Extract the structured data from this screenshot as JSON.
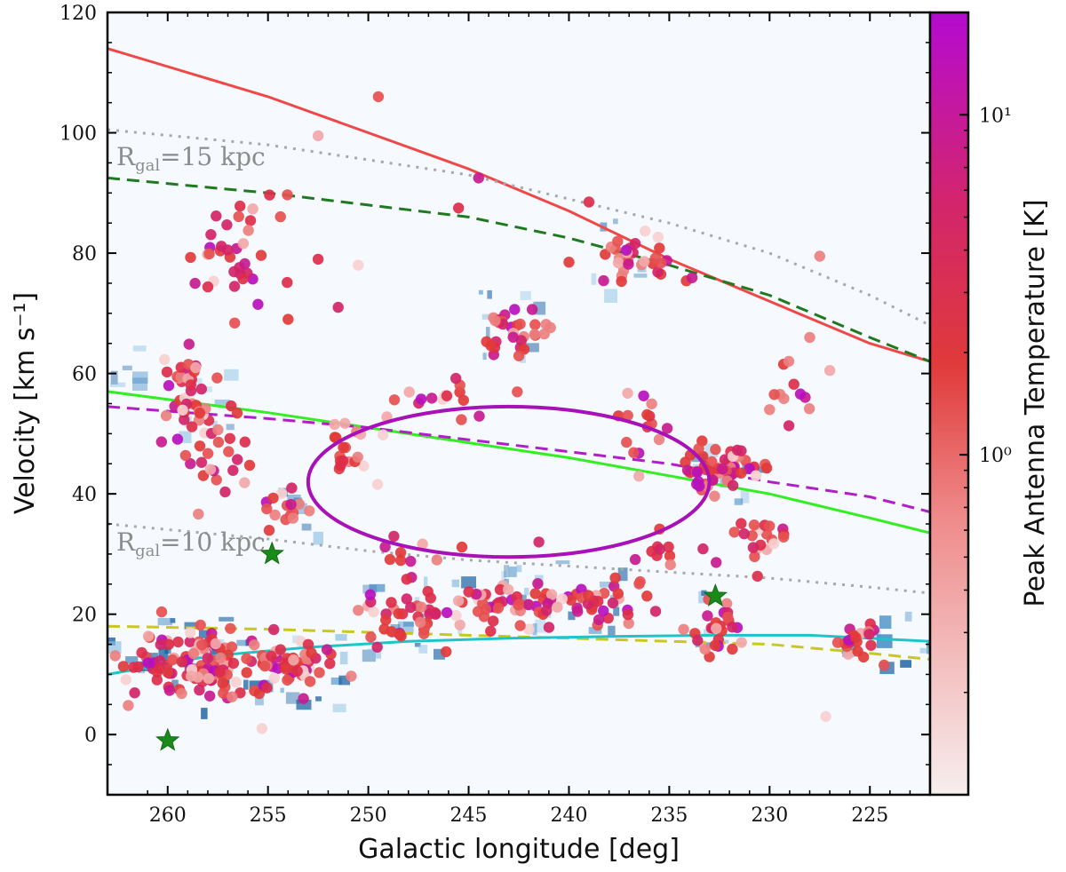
{
  "chart_data": {
    "type": "scatter",
    "title": "",
    "xlabel": "Galactic longitude [deg]",
    "ylabel": "Velocity [km s⁻¹]",
    "colorbar_label": "Peak Antenna Temperature [K]",
    "xlim": [
      263,
      222
    ],
    "ylim": [
      -10,
      120
    ],
    "x_ticks": [
      260,
      255,
      250,
      245,
      240,
      235,
      230,
      225
    ],
    "x_tick_labels": [
      "260",
      "255",
      "250",
      "245",
      "240",
      "235",
      "230",
      "225"
    ],
    "y_ticks": [
      0,
      20,
      40,
      60,
      80,
      100,
      120
    ],
    "y_tick_labels": [
      "0",
      "20",
      "40",
      "60",
      "80",
      "100",
      "120"
    ],
    "colorbar": {
      "scale": "log",
      "range": [
        0.1,
        20
      ],
      "ticks": [
        1,
        10
      ],
      "tick_labels": [
        "10⁰",
        "10¹"
      ]
    },
    "annotations": [
      {
        "text": "R_gal=15 kpc",
        "base": "R",
        "sub": "gal",
        "rest": "=15 kpc",
        "x": 262.2,
        "y": 96
      },
      {
        "text": "R_gal=10 kpc",
        "base": "R",
        "sub": "gal",
        "rest": "=10 kpc",
        "x": 262.2,
        "y": 29.5
      }
    ],
    "curves": [
      {
        "name": "red-solid",
        "color": "#f04848",
        "dash": "",
        "points": [
          [
            263,
            114
          ],
          [
            260,
            111
          ],
          [
            255,
            106
          ],
          [
            250,
            100
          ],
          [
            245,
            94
          ],
          [
            240,
            87
          ],
          [
            235,
            79
          ],
          [
            230,
            72
          ],
          [
            225,
            65
          ],
          [
            222,
            62
          ]
        ]
      },
      {
        "name": "gray-dotted-15kpc",
        "color": "#a8a8a8",
        "dash": "3 7",
        "points": [
          [
            263,
            100.5
          ],
          [
            255,
            98
          ],
          [
            250,
            95.5
          ],
          [
            245,
            93
          ],
          [
            240,
            89
          ],
          [
            235,
            85
          ],
          [
            230,
            80
          ],
          [
            225,
            73
          ],
          [
            222,
            68
          ]
        ]
      },
      {
        "name": "green-dashed",
        "color": "#1f7a1f",
        "dash": "14 8",
        "points": [
          [
            263,
            92.5
          ],
          [
            255,
            90
          ],
          [
            250,
            88
          ],
          [
            245,
            86
          ],
          [
            240,
            82.5
          ],
          [
            235,
            78
          ],
          [
            230,
            73
          ],
          [
            225,
            66
          ],
          [
            222,
            62
          ]
        ]
      },
      {
        "name": "lime-solid",
        "color": "#33ee22",
        "dash": "",
        "points": [
          [
            263,
            57
          ],
          [
            255,
            53.5
          ],
          [
            250,
            51
          ],
          [
            245,
            48.5
          ],
          [
            240,
            46
          ],
          [
            235,
            43
          ],
          [
            230,
            40
          ],
          [
            225,
            36
          ],
          [
            222,
            33.5
          ]
        ]
      },
      {
        "name": "magenta-dashed",
        "color": "#b01ec8",
        "dash": "14 8",
        "points": [
          [
            263,
            54.5
          ],
          [
            255,
            52.5
          ],
          [
            250,
            51
          ],
          [
            245,
            49
          ],
          [
            240,
            47
          ],
          [
            235,
            45
          ],
          [
            230,
            42
          ],
          [
            225,
            39.5
          ],
          [
            222,
            37
          ]
        ]
      },
      {
        "name": "gray-dotted-10kpc",
        "color": "#a8a8a8",
        "dash": "3 7",
        "points": [
          [
            263,
            35
          ],
          [
            255,
            32.5
          ],
          [
            250,
            30.5
          ],
          [
            245,
            29
          ],
          [
            240,
            28
          ],
          [
            235,
            27
          ],
          [
            230,
            26
          ],
          [
            225,
            24.5
          ],
          [
            222,
            23.5
          ]
        ]
      },
      {
        "name": "yellow-dashed",
        "color": "#c8c81e",
        "dash": "14 8",
        "points": [
          [
            263,
            18
          ],
          [
            255,
            17.5
          ],
          [
            250,
            17
          ],
          [
            245,
            16.5
          ],
          [
            240,
            16
          ],
          [
            235,
            15.5
          ],
          [
            230,
            15
          ],
          [
            225,
            13.5
          ],
          [
            222,
            12.5
          ]
        ]
      },
      {
        "name": "cyan-solid",
        "color": "#20c4c8",
        "dash": "",
        "points": [
          [
            263,
            10
          ],
          [
            258,
            13
          ],
          [
            253,
            14.5
          ],
          [
            248,
            15.5
          ],
          [
            243,
            16
          ],
          [
            238,
            16.3
          ],
          [
            233,
            16.5
          ],
          [
            228,
            16.5
          ],
          [
            225,
            16
          ],
          [
            222,
            15.5
          ]
        ]
      }
    ],
    "ellipse": {
      "name": "magenta-ellipse",
      "color": "#a810b8",
      "cx": 243,
      "cy": 42,
      "rx": 10,
      "ry": 12.5
    },
    "stars": [
      {
        "x": 260,
        "y": -1
      },
      {
        "x": 254.8,
        "y": 30
      },
      {
        "x": 232.7,
        "y": 23
      }
    ],
    "emission_regions": [
      {
        "x": [
          263,
          255
        ],
        "y": [
          4,
          21
        ],
        "intensity": 0.95
      },
      {
        "x": [
          255,
          250.5
        ],
        "y": [
          5,
          17
        ],
        "intensity": 0.7
      },
      {
        "x": [
          250.5,
          246
        ],
        "y": [
          14,
          27
        ],
        "intensity": 0.6
      },
      {
        "x": [
          246,
          236
        ],
        "y": [
          17,
          29
        ],
        "intensity": 0.6
      },
      {
        "x": [
          234,
          232
        ],
        "y": [
          14,
          26
        ],
        "intensity": 0.6
      },
      {
        "x": [
          227,
          222
        ],
        "y": [
          12,
          21
        ],
        "intensity": 0.9
      },
      {
        "x": [
          259.5,
          257
        ],
        "y": [
          50,
          64
        ],
        "intensity": 0.5
      },
      {
        "x": [
          254.5,
          252.5
        ],
        "y": [
          31,
          41
        ],
        "intensity": 0.6
      },
      {
        "x": [
          244.5,
          241
        ],
        "y": [
          62,
          74
        ],
        "intensity": 0.5
      },
      {
        "x": [
          234,
          230
        ],
        "y": [
          39,
          50
        ],
        "intensity": 0.65
      },
      {
        "x": [
          239,
          236
        ],
        "y": [
          74,
          86
        ],
        "intensity": 0.3
      },
      {
        "x": [
          263,
          261
        ],
        "y": [
          57,
          65
        ],
        "intensity": 0.3
      }
    ],
    "clump_groups": [
      {
        "cx": 258.5,
        "cy": 12,
        "sx": 2.2,
        "sy": 4,
        "n": 120
      },
      {
        "cx": 253.5,
        "cy": 11,
        "sx": 1.5,
        "sy": 3,
        "n": 45
      },
      {
        "cx": 248.5,
        "cy": 20,
        "sx": 1.5,
        "sy": 3.5,
        "n": 35
      },
      {
        "cx": 243.5,
        "cy": 21,
        "sx": 2.0,
        "sy": 3,
        "n": 45
      },
      {
        "cx": 238.5,
        "cy": 22,
        "sx": 1.8,
        "sy": 3,
        "n": 40
      },
      {
        "cx": 232.5,
        "cy": 18,
        "sx": 1.0,
        "sy": 4,
        "n": 25
      },
      {
        "cx": 225.5,
        "cy": 16,
        "sx": 1.0,
        "sy": 3,
        "n": 20
      },
      {
        "cx": 259.0,
        "cy": 57,
        "sx": 1.0,
        "sy": 6,
        "n": 45
      },
      {
        "cx": 257.5,
        "cy": 47,
        "sx": 1.0,
        "sy": 5,
        "n": 20
      },
      {
        "cx": 257.0,
        "cy": 78,
        "sx": 1.3,
        "sy": 5,
        "n": 25
      },
      {
        "cx": 254.0,
        "cy": 36,
        "sx": 1.0,
        "sy": 3,
        "n": 15
      },
      {
        "cx": 242.5,
        "cy": 67,
        "sx": 1.2,
        "sy": 3,
        "n": 30
      },
      {
        "cx": 246.0,
        "cy": 57,
        "sx": 2.0,
        "sy": 3,
        "n": 15
      },
      {
        "cx": 232.5,
        "cy": 44,
        "sx": 1.5,
        "sy": 3,
        "n": 55
      },
      {
        "cx": 236.5,
        "cy": 79,
        "sx": 1.5,
        "sy": 4,
        "n": 30
      },
      {
        "cx": 251.0,
        "cy": 47,
        "sx": 1.3,
        "sy": 4,
        "n": 20
      },
      {
        "cx": 236.0,
        "cy": 51,
        "sx": 1.0,
        "sy": 5,
        "n": 15
      },
      {
        "cx": 230.5,
        "cy": 33,
        "sx": 1.0,
        "sy": 4,
        "n": 20
      },
      {
        "cx": 229.0,
        "cy": 55,
        "sx": 1.2,
        "sy": 5,
        "n": 10
      },
      {
        "cx": 247.5,
        "cy": 30,
        "sx": 1.5,
        "sy": 3,
        "n": 10
      },
      {
        "cx": 235.0,
        "cy": 30,
        "sx": 1.5,
        "sy": 4,
        "n": 12
      },
      {
        "cx": 255.0,
        "cy": 85,
        "sx": 1.0,
        "sy": 5,
        "n": 10
      }
    ],
    "isolated_clumps": [
      [
        249.5,
        106
      ],
      [
        252.5,
        99.5
      ],
      [
        244.5,
        92.5
      ],
      [
        245.5,
        87.5
      ],
      [
        250.5,
        78
      ],
      [
        252.5,
        79
      ],
      [
        251.5,
        71
      ],
      [
        255.5,
        71.5
      ],
      [
        240,
        78.5
      ],
      [
        227.5,
        79.5
      ],
      [
        228,
        66
      ],
      [
        227,
        60.5
      ],
      [
        239,
        88.5
      ],
      [
        241.5,
        32
      ],
      [
        255.3,
        1
      ],
      [
        227.2,
        3
      ],
      [
        254,
        69
      ],
      [
        230,
        54
      ]
    ]
  }
}
